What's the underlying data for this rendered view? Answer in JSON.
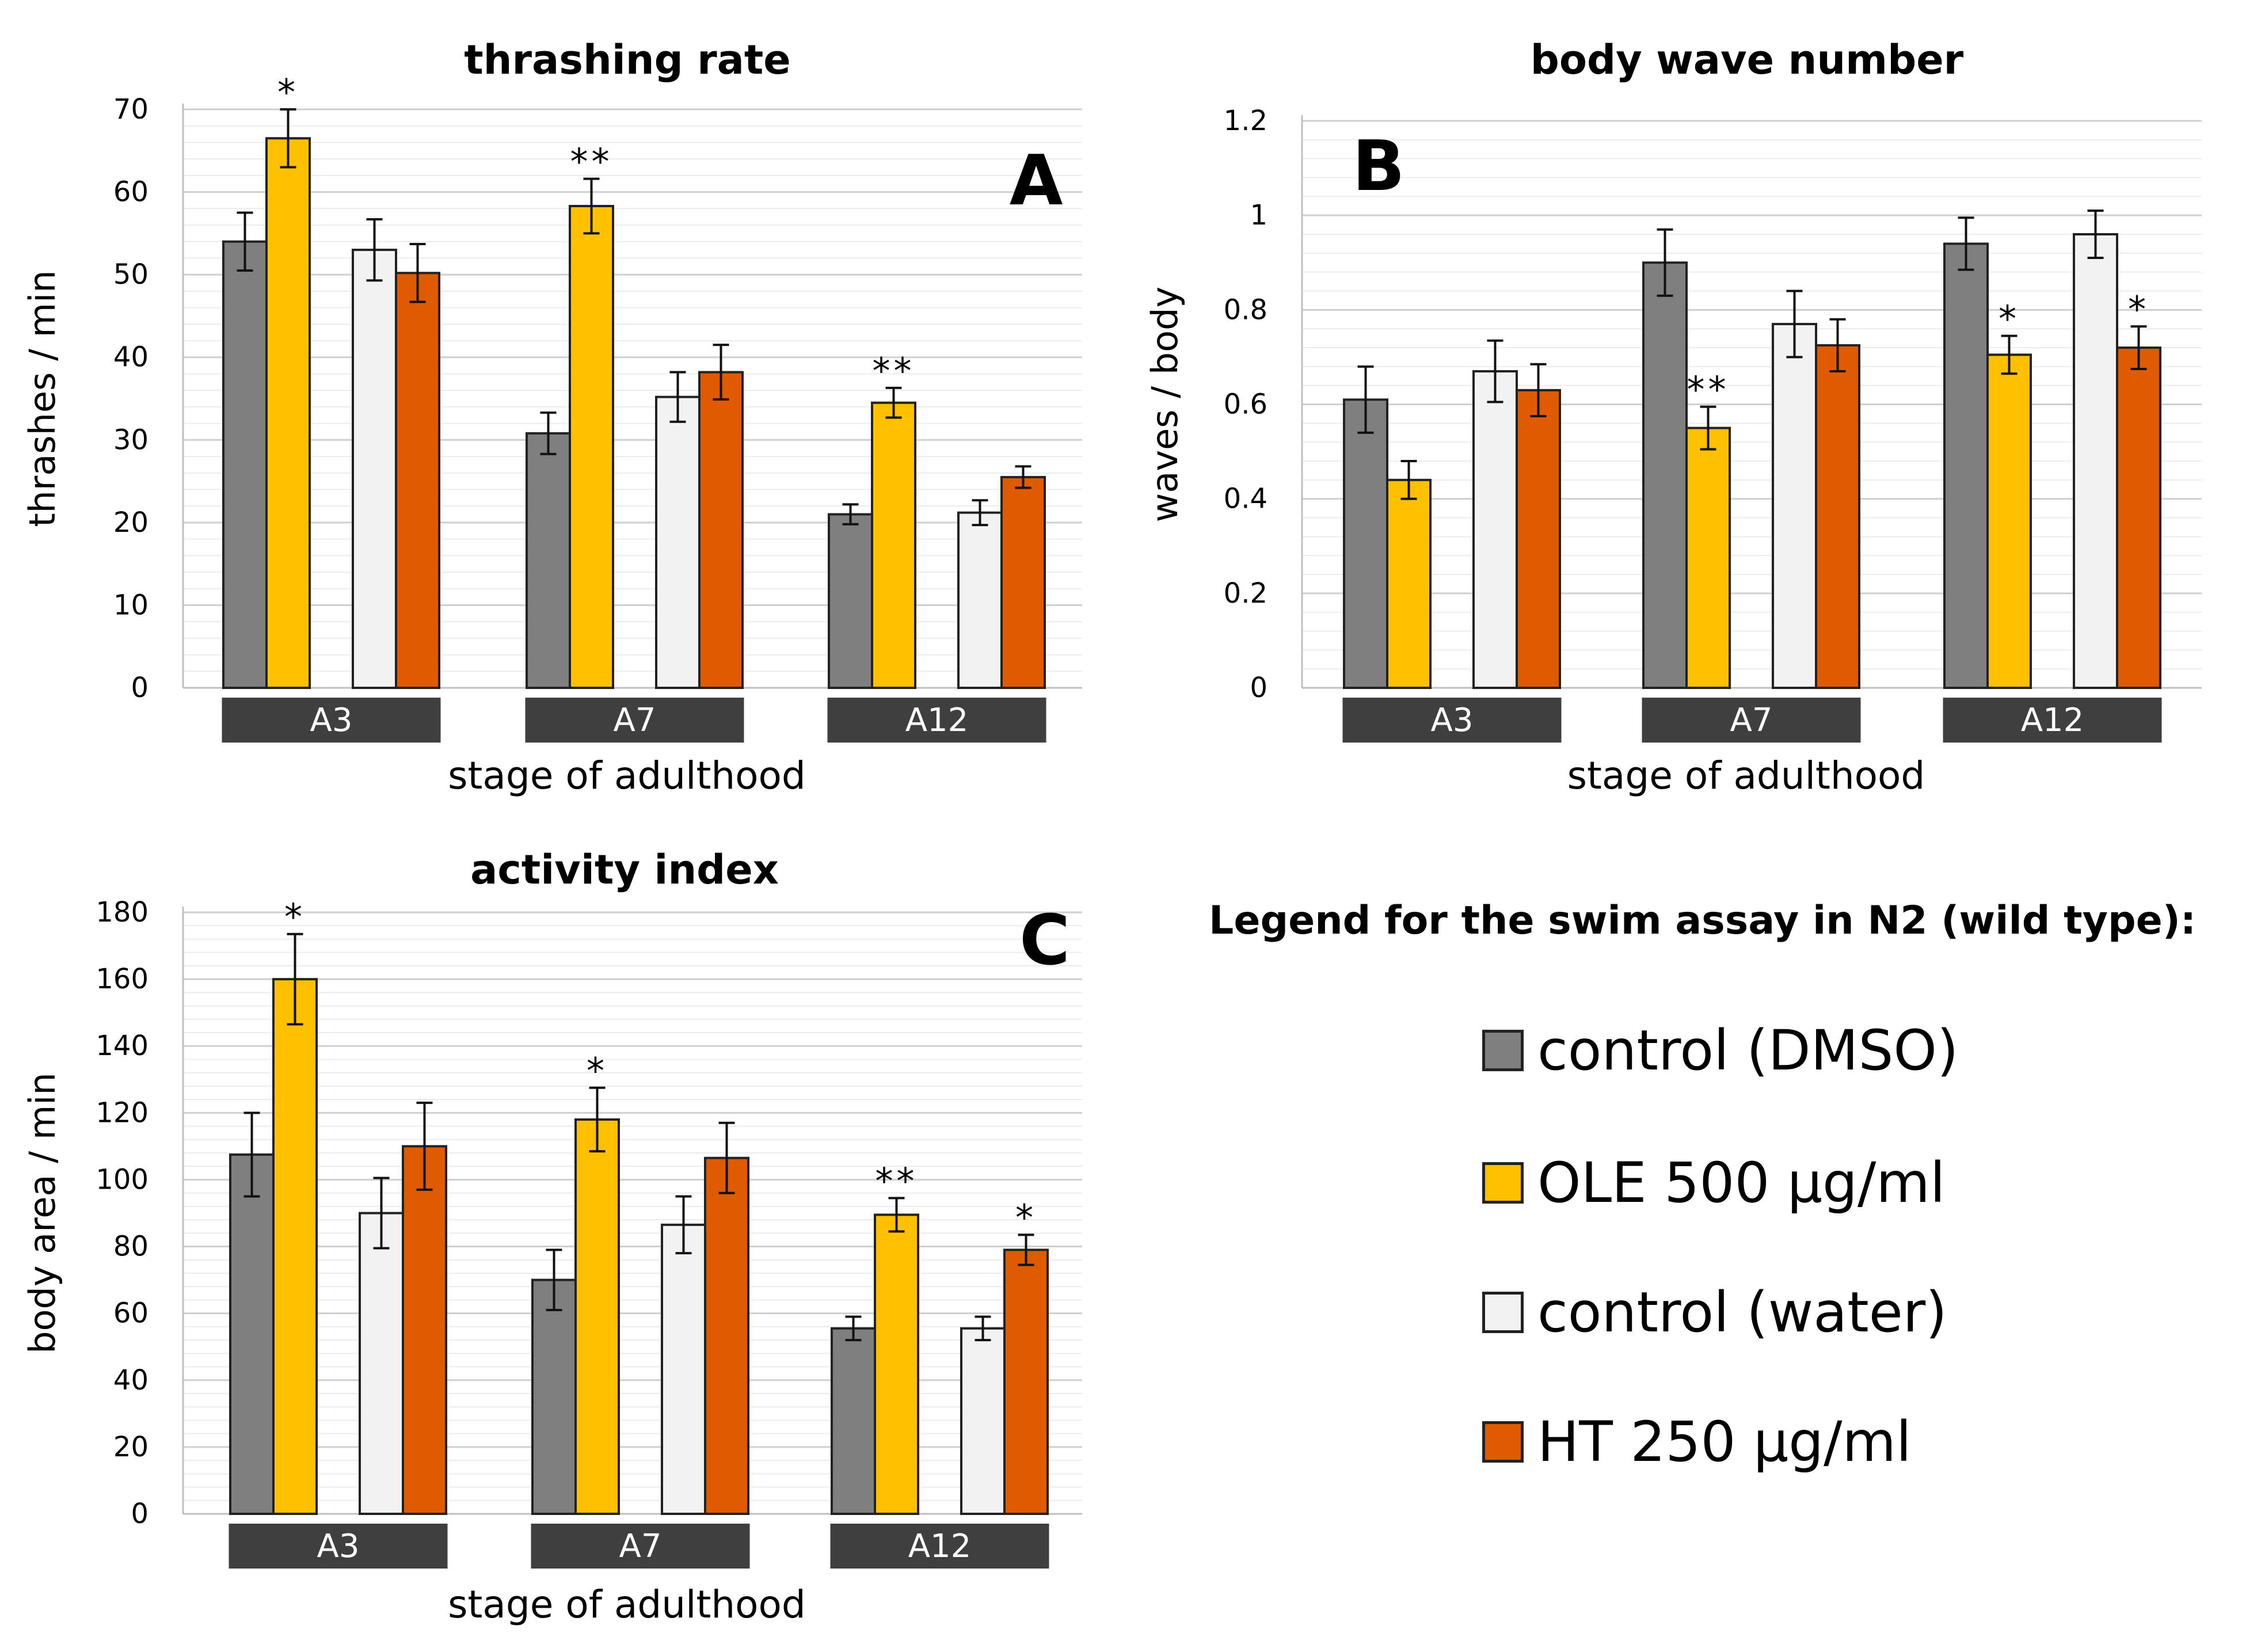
{
  "chart_data": [
    {
      "type": "bar",
      "panel": "A",
      "title": "thrashing rate",
      "xlabel": "stage of adulthood",
      "ylabel": "thrashes / min",
      "ylim": [
        0,
        70
      ],
      "yticks": [
        0,
        10,
        20,
        30,
        40,
        50,
        60,
        70
      ],
      "ytick_labels": [
        "0",
        "10",
        "20",
        "30",
        "40",
        "50",
        "60",
        "70"
      ],
      "categories": [
        "A3",
        "A7",
        "A12"
      ],
      "series": [
        {
          "name": "control (DMSO)",
          "values": [
            54.0,
            30.8,
            21.0
          ],
          "errors": [
            3.5,
            2.5,
            1.2
          ],
          "sig": [
            "",
            "",
            ""
          ]
        },
        {
          "name": "OLE 500 µg/ml",
          "values": [
            66.5,
            58.3,
            34.5
          ],
          "errors": [
            3.5,
            3.3,
            1.8
          ],
          "sig": [
            "*",
            "**",
            "**"
          ]
        },
        {
          "name": "control (water)",
          "values": [
            53.0,
            35.2,
            21.2
          ],
          "errors": [
            3.7,
            3.0,
            1.5
          ],
          "sig": [
            "",
            "",
            ""
          ]
        },
        {
          "name": "HT 250 µg/ml",
          "values": [
            50.2,
            38.2,
            25.5
          ],
          "errors": [
            3.5,
            3.3,
            1.3
          ],
          "sig": [
            "",
            "",
            ""
          ]
        }
      ]
    },
    {
      "type": "bar",
      "panel": "B",
      "title": "body wave number",
      "xlabel": "stage of adulthood",
      "ylabel": "waves / body",
      "ylim": [
        0,
        1.2
      ],
      "yticks": [
        0,
        0.2,
        0.4,
        0.6,
        0.8,
        1,
        1.2
      ],
      "ytick_labels": [
        "0",
        "0.2",
        "0.4",
        "0.6",
        "0.8",
        "1",
        "1.2"
      ],
      "categories": [
        "A3",
        "A7",
        "A12"
      ],
      "series": [
        {
          "name": "control (DMSO)",
          "values": [
            0.61,
            0.9,
            0.94
          ],
          "errors": [
            0.07,
            0.07,
            0.055
          ],
          "sig": [
            "",
            "",
            ""
          ]
        },
        {
          "name": "OLE 500 µg/ml",
          "values": [
            0.44,
            0.55,
            0.705
          ],
          "errors": [
            0.04,
            0.045,
            0.04
          ],
          "sig": [
            "",
            "**",
            "*"
          ]
        },
        {
          "name": "control (water)",
          "values": [
            0.67,
            0.77,
            0.96
          ],
          "errors": [
            0.065,
            0.07,
            0.05
          ],
          "sig": [
            "",
            "",
            ""
          ]
        },
        {
          "name": "HT 250 µg/ml",
          "values": [
            0.63,
            0.725,
            0.72
          ],
          "errors": [
            0.055,
            0.055,
            0.045
          ],
          "sig": [
            "",
            "",
            "*"
          ]
        }
      ]
    },
    {
      "type": "bar",
      "panel": "C",
      "title": "activity index",
      "xlabel": "stage of adulthood",
      "ylabel": "body area / min",
      "ylim": [
        0,
        180
      ],
      "yticks": [
        0,
        20,
        40,
        60,
        80,
        100,
        120,
        140,
        160,
        180
      ],
      "ytick_labels": [
        "0",
        "20",
        "40",
        "60",
        "80",
        "100",
        "120",
        "140",
        "160",
        "180"
      ],
      "categories": [
        "A3",
        "A7",
        "A12"
      ],
      "series": [
        {
          "name": "control (DMSO)",
          "values": [
            107.5,
            70.0,
            55.5
          ],
          "errors": [
            12.5,
            9.0,
            3.5
          ],
          "sig": [
            "",
            "",
            ""
          ]
        },
        {
          "name": "OLE 500 µg/ml",
          "values": [
            160.0,
            118.0,
            89.5
          ],
          "errors": [
            13.5,
            9.5,
            5.0
          ],
          "sig": [
            "*",
            "*",
            "**"
          ]
        },
        {
          "name": "control (water)",
          "values": [
            90.0,
            86.5,
            55.5
          ],
          "errors": [
            10.5,
            8.5,
            3.5
          ],
          "sig": [
            "",
            "",
            ""
          ]
        },
        {
          "name": "HT 250 µg/ml",
          "values": [
            110.0,
            106.5,
            79.0
          ],
          "errors": [
            13.0,
            10.5,
            4.5
          ],
          "sig": [
            "",
            "",
            "*"
          ]
        }
      ]
    }
  ],
  "colors": {
    "control (DMSO)": "#7f7f7f",
    "OLE 500 µg/ml": "#ffc000",
    "control (water)": "#f2f2f2",
    "HT 250 µg/ml": "#e05a00",
    "category_box": "#3f3f3f",
    "gridline": "#dddddd"
  },
  "legend": {
    "title": "Legend for the swim assay in N2 (wild type):",
    "items": [
      "control (DMSO)",
      "OLE 500 µg/ml",
      "control (water)",
      "HT 250 µg/ml"
    ]
  }
}
